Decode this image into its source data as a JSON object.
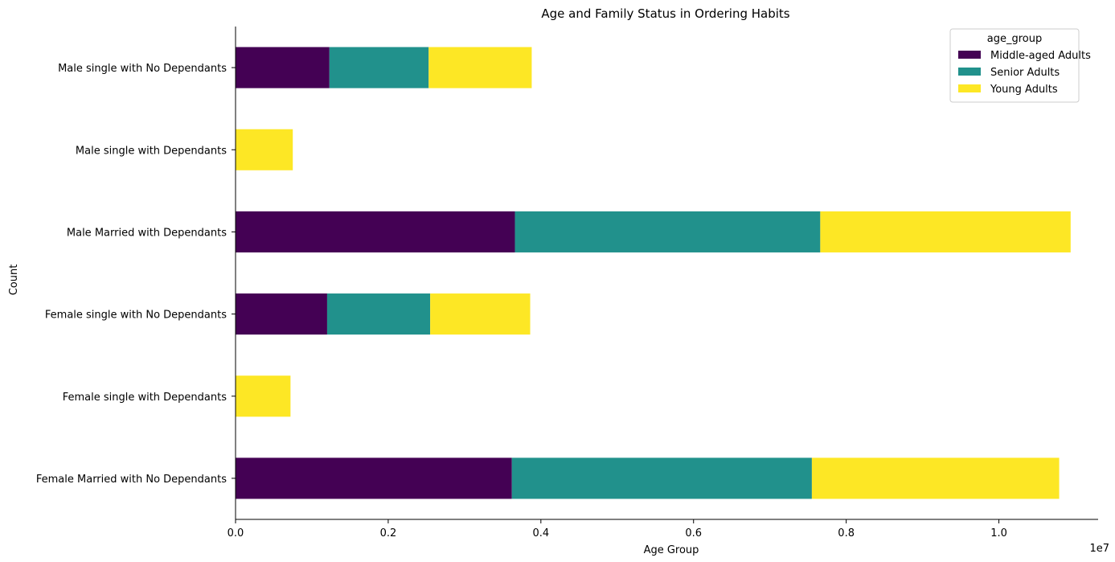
{
  "chart_data": {
    "type": "bar",
    "orientation": "horizontal",
    "stacked": true,
    "title": "Age and Family Status in Ordering Habits",
    "xlabel": "Age Group",
    "ylabel": "Count",
    "x_offset_label": "1e7",
    "xlim": [
      0,
      11.3
    ],
    "x_ticks": [
      0,
      2,
      4,
      6,
      8,
      10
    ],
    "x_tick_labels": [
      "0.0",
      "0.2",
      "0.4",
      "0.6",
      "0.8",
      "1.0"
    ],
    "categories": [
      "Female Married with No Dependants",
      "Female single with Dependants",
      "Female single with No Dependants",
      "Male Married with Dependants",
      "Male single with Dependants",
      "Male single with No Dependants"
    ],
    "series": [
      {
        "name": "Middle-aged Adults",
        "color": "#440154",
        "values": [
          3.62,
          0,
          1.2,
          3.66,
          0,
          1.23
        ]
      },
      {
        "name": "Senior Adults",
        "color": "#21918c",
        "values": [
          3.93,
          0,
          1.35,
          4.0,
          0,
          1.3
        ]
      },
      {
        "name": "Young Adults",
        "color": "#fde725",
        "values": [
          3.24,
          0.72,
          1.31,
          3.28,
          0.75,
          1.35
        ]
      }
    ],
    "legend": {
      "title": "age_group",
      "position": "top-right"
    },
    "grid": false
  }
}
